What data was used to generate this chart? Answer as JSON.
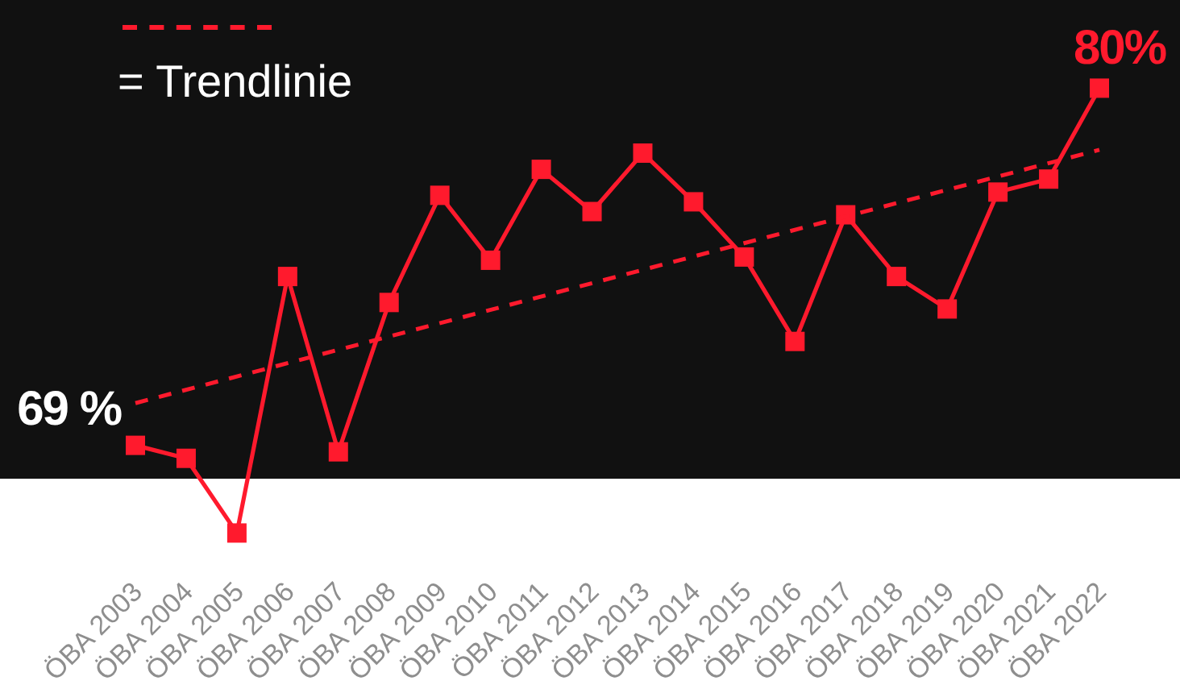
{
  "chart_data": {
    "type": "line",
    "categories": [
      "ÖBA 2003",
      "ÖBA 2004",
      "ÖBA 2005",
      "ÖBA 2006",
      "ÖBA 2007",
      "ÖBA 2008",
      "ÖBA 2009",
      "ÖBA 2010",
      "ÖBA 2011",
      "ÖBA 2012",
      "ÖBA 2013",
      "ÖBA 2014",
      "ÖBA 2015",
      "ÖBA 2016",
      "ÖBA 2017",
      "ÖBA 2018",
      "ÖBA 2019",
      "ÖBA 2020",
      "ÖBA 2021",
      "ÖBA 2022"
    ],
    "series": [
      {
        "color": "#ff1a2d",
        "marker": "square",
        "values": [
          69,
          68.6,
          66.3,
          74.2,
          68.8,
          73.4,
          76.7,
          74.7,
          77.5,
          76.2,
          78.0,
          76.5,
          74.8,
          72.2,
          76.1,
          74.2,
          73.2,
          76.8,
          77.2,
          80
        ],
        "value_labels": [
          "69 %",
          null,
          null,
          null,
          null,
          null,
          null,
          null,
          null,
          null,
          null,
          null,
          null,
          null,
          null,
          null,
          null,
          null,
          null,
          "80%"
        ]
      },
      {
        "name": "= Trendlinie",
        "color": "#ff1a2d",
        "marker": "none",
        "line_style": "dashed",
        "x": [
          "ÖBA 2003",
          "ÖBA 2022"
        ],
        "values": [
          70.3,
          78.1
        ]
      }
    ],
    "tick_labels": "x",
    "legend": "top left"
  }
}
